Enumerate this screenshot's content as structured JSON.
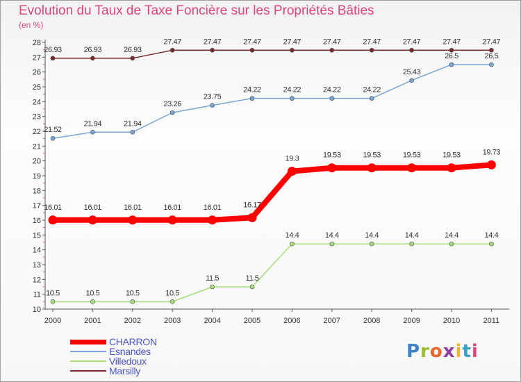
{
  "chart_data": {
    "type": "line",
    "title": "Evolution du Taux de Taxe Foncière sur les Propriétés Bâties",
    "subtitle": "(en %)",
    "xlabel": "",
    "ylabel": "",
    "ylim": [
      10,
      28
    ],
    "yticks": [
      10,
      11,
      12,
      13,
      14,
      15,
      16,
      17,
      18,
      19,
      20,
      21,
      22,
      23,
      24,
      25,
      26,
      27,
      28
    ],
    "x": [
      "2000",
      "2001",
      "2002",
      "2003",
      "2004",
      "2005",
      "2006",
      "2007",
      "2008",
      "2009",
      "2010",
      "2011"
    ],
    "series": [
      {
        "name": "CHARRON",
        "color": "#ff0000",
        "emphasis": "thick",
        "values": [
          16.01,
          16.01,
          16.01,
          16.01,
          16.01,
          16.17,
          19.3,
          19.53,
          19.53,
          19.53,
          19.53,
          19.73
        ],
        "labels": [
          "16.01",
          "16.01",
          "16.01",
          "16.01",
          "16.01",
          "16.17",
          "19.3",
          "19.53",
          "19.53",
          "19.53",
          "19.53",
          "19.73"
        ]
      },
      {
        "name": "Esnandes",
        "color": "#7aa6d6",
        "emphasis": "thin",
        "values": [
          21.52,
          21.94,
          21.94,
          23.26,
          23.75,
          24.22,
          24.22,
          24.22,
          24.22,
          25.43,
          26.5,
          26.5
        ],
        "labels": [
          "21.52",
          "21.94",
          "21.94",
          "23.26",
          "23.75",
          "24.22",
          "24.22",
          "24.22",
          "24.22",
          "25.43",
          "26.5",
          "26.5"
        ]
      },
      {
        "name": "Villedoux",
        "color": "#a6dd7a",
        "emphasis": "thin",
        "values": [
          10.5,
          10.5,
          10.5,
          10.5,
          11.5,
          11.5,
          14.4,
          14.4,
          14.4,
          14.4,
          14.4,
          14.4
        ],
        "labels": [
          "10.5",
          "10.5",
          "10.5",
          "10.5",
          "11.5",
          "11.5",
          "14.4",
          "14.4",
          "14.4",
          "14.4",
          "14.4",
          "14.4"
        ]
      },
      {
        "name": "Marsilly",
        "color": "#7a2a2a",
        "emphasis": "thin",
        "values": [
          26.93,
          26.93,
          26.93,
          27.47,
          27.47,
          27.47,
          27.47,
          27.47,
          27.47,
          27.47,
          27.47,
          27.47
        ],
        "labels": [
          "26.93",
          "26.93",
          "26.93",
          "27.47",
          "27.47",
          "27.47",
          "27.47",
          "27.47",
          "27.47",
          "27.47",
          "27.47",
          "27.47"
        ]
      }
    ],
    "legend": {
      "placement": "bottom-left"
    },
    "grid": false
  },
  "brand": {
    "letters": [
      "P",
      "r",
      "o",
      "x",
      "i",
      "t",
      "i"
    ]
  }
}
